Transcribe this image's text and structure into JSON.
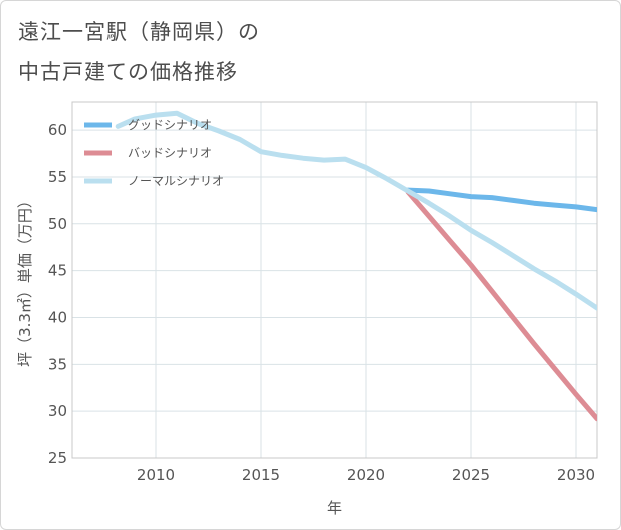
{
  "title": {
    "line1": "遠江一宮駅（静岡県）の",
    "line2": "中古戸建ての価格推移"
  },
  "chart_data": {
    "type": "line",
    "xlabel": "年",
    "ylabel": "坪（3.3㎡）単価（万円）",
    "xlim": [
      2006,
      2031
    ],
    "ylim": [
      25,
      63
    ],
    "x_ticks": [
      2010,
      2015,
      2020,
      2025,
      2030
    ],
    "y_ticks": [
      25,
      30,
      35,
      40,
      45,
      50,
      55,
      60
    ],
    "grid": true,
    "legend_position": "top-left",
    "series": [
      {
        "name": "グッドシナリオ",
        "color": "#6cb7ea",
        "points": [
          [
            2022,
            53.6
          ],
          [
            2023,
            53.5
          ],
          [
            2024,
            53.2
          ],
          [
            2025,
            52.9
          ],
          [
            2026,
            52.8
          ],
          [
            2027,
            52.5
          ],
          [
            2028,
            52.2
          ],
          [
            2029,
            52.0
          ],
          [
            2030,
            51.8
          ],
          [
            2031,
            51.5
          ]
        ]
      },
      {
        "name": "バッドシナリオ",
        "color": "#dd8c94",
        "points": [
          [
            2022,
            53.4
          ],
          [
            2023,
            50.8
          ],
          [
            2024,
            48.2
          ],
          [
            2025,
            45.6
          ],
          [
            2026,
            42.8
          ],
          [
            2027,
            40.0
          ],
          [
            2028,
            37.2
          ],
          [
            2029,
            34.5
          ],
          [
            2030,
            31.8
          ],
          [
            2031,
            29.2
          ]
        ]
      },
      {
        "name": "ノーマルシナリオ",
        "color": "#badfef",
        "points": [
          [
            2008.2,
            60.4
          ],
          [
            2009,
            61.2
          ],
          [
            2010,
            61.6
          ],
          [
            2011,
            61.8
          ],
          [
            2012,
            60.7
          ],
          [
            2013,
            59.9
          ],
          [
            2014,
            59.0
          ],
          [
            2015,
            57.7
          ],
          [
            2016,
            57.3
          ],
          [
            2017,
            57.0
          ],
          [
            2018,
            56.8
          ],
          [
            2019,
            56.9
          ],
          [
            2020,
            56.0
          ],
          [
            2021,
            54.8
          ],
          [
            2022,
            53.5
          ],
          [
            2023,
            52.2
          ],
          [
            2024,
            50.8
          ],
          [
            2025,
            49.3
          ],
          [
            2026,
            48.0
          ],
          [
            2027,
            46.6
          ],
          [
            2028,
            45.2
          ],
          [
            2029,
            43.9
          ],
          [
            2030,
            42.5
          ],
          [
            2031,
            41.0
          ]
        ]
      }
    ]
  }
}
